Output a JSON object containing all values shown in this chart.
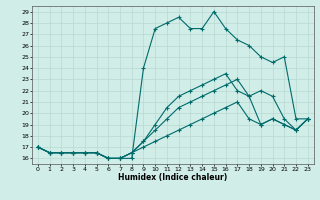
{
  "xlabel": "Humidex (Indice chaleur)",
  "xlim": [
    -0.5,
    23.5
  ],
  "ylim": [
    15.5,
    29.5
  ],
  "yticks": [
    16,
    17,
    18,
    19,
    20,
    21,
    22,
    23,
    24,
    25,
    26,
    27,
    28,
    29
  ],
  "xticks": [
    0,
    1,
    2,
    3,
    4,
    5,
    6,
    7,
    8,
    9,
    10,
    11,
    12,
    13,
    14,
    15,
    16,
    17,
    18,
    19,
    20,
    21,
    22,
    23
  ],
  "background_color": "#d0ede8",
  "line_color": "#006b6b",
  "grid_color": "#b8d8d0",
  "lines": [
    [
      17.0,
      16.5,
      16.5,
      16.5,
      16.5,
      16.5,
      16.0,
      16.0,
      16.0,
      24.0,
      27.5,
      28.0,
      28.5,
      27.5,
      27.5,
      29.0,
      27.5,
      26.5,
      26.0,
      25.0,
      24.5,
      25.0,
      19.5,
      19.5
    ],
    [
      17.0,
      16.5,
      16.5,
      16.5,
      16.5,
      16.5,
      16.0,
      16.0,
      16.5,
      17.5,
      19.0,
      20.5,
      21.5,
      22.0,
      22.5,
      23.0,
      23.5,
      22.0,
      21.5,
      22.0,
      21.5,
      19.5,
      18.5,
      19.5
    ],
    [
      17.0,
      16.5,
      16.5,
      16.5,
      16.5,
      16.5,
      16.0,
      16.0,
      16.5,
      17.5,
      18.5,
      19.5,
      20.5,
      21.0,
      21.5,
      22.0,
      22.5,
      23.0,
      21.5,
      19.0,
      19.5,
      19.0,
      18.5,
      19.5
    ],
    [
      17.0,
      16.5,
      16.5,
      16.5,
      16.5,
      16.5,
      16.0,
      16.0,
      16.5,
      17.0,
      17.5,
      18.0,
      18.5,
      19.0,
      19.5,
      20.0,
      20.5,
      21.0,
      19.5,
      19.0,
      19.5,
      19.0,
      18.5,
      19.5
    ]
  ]
}
